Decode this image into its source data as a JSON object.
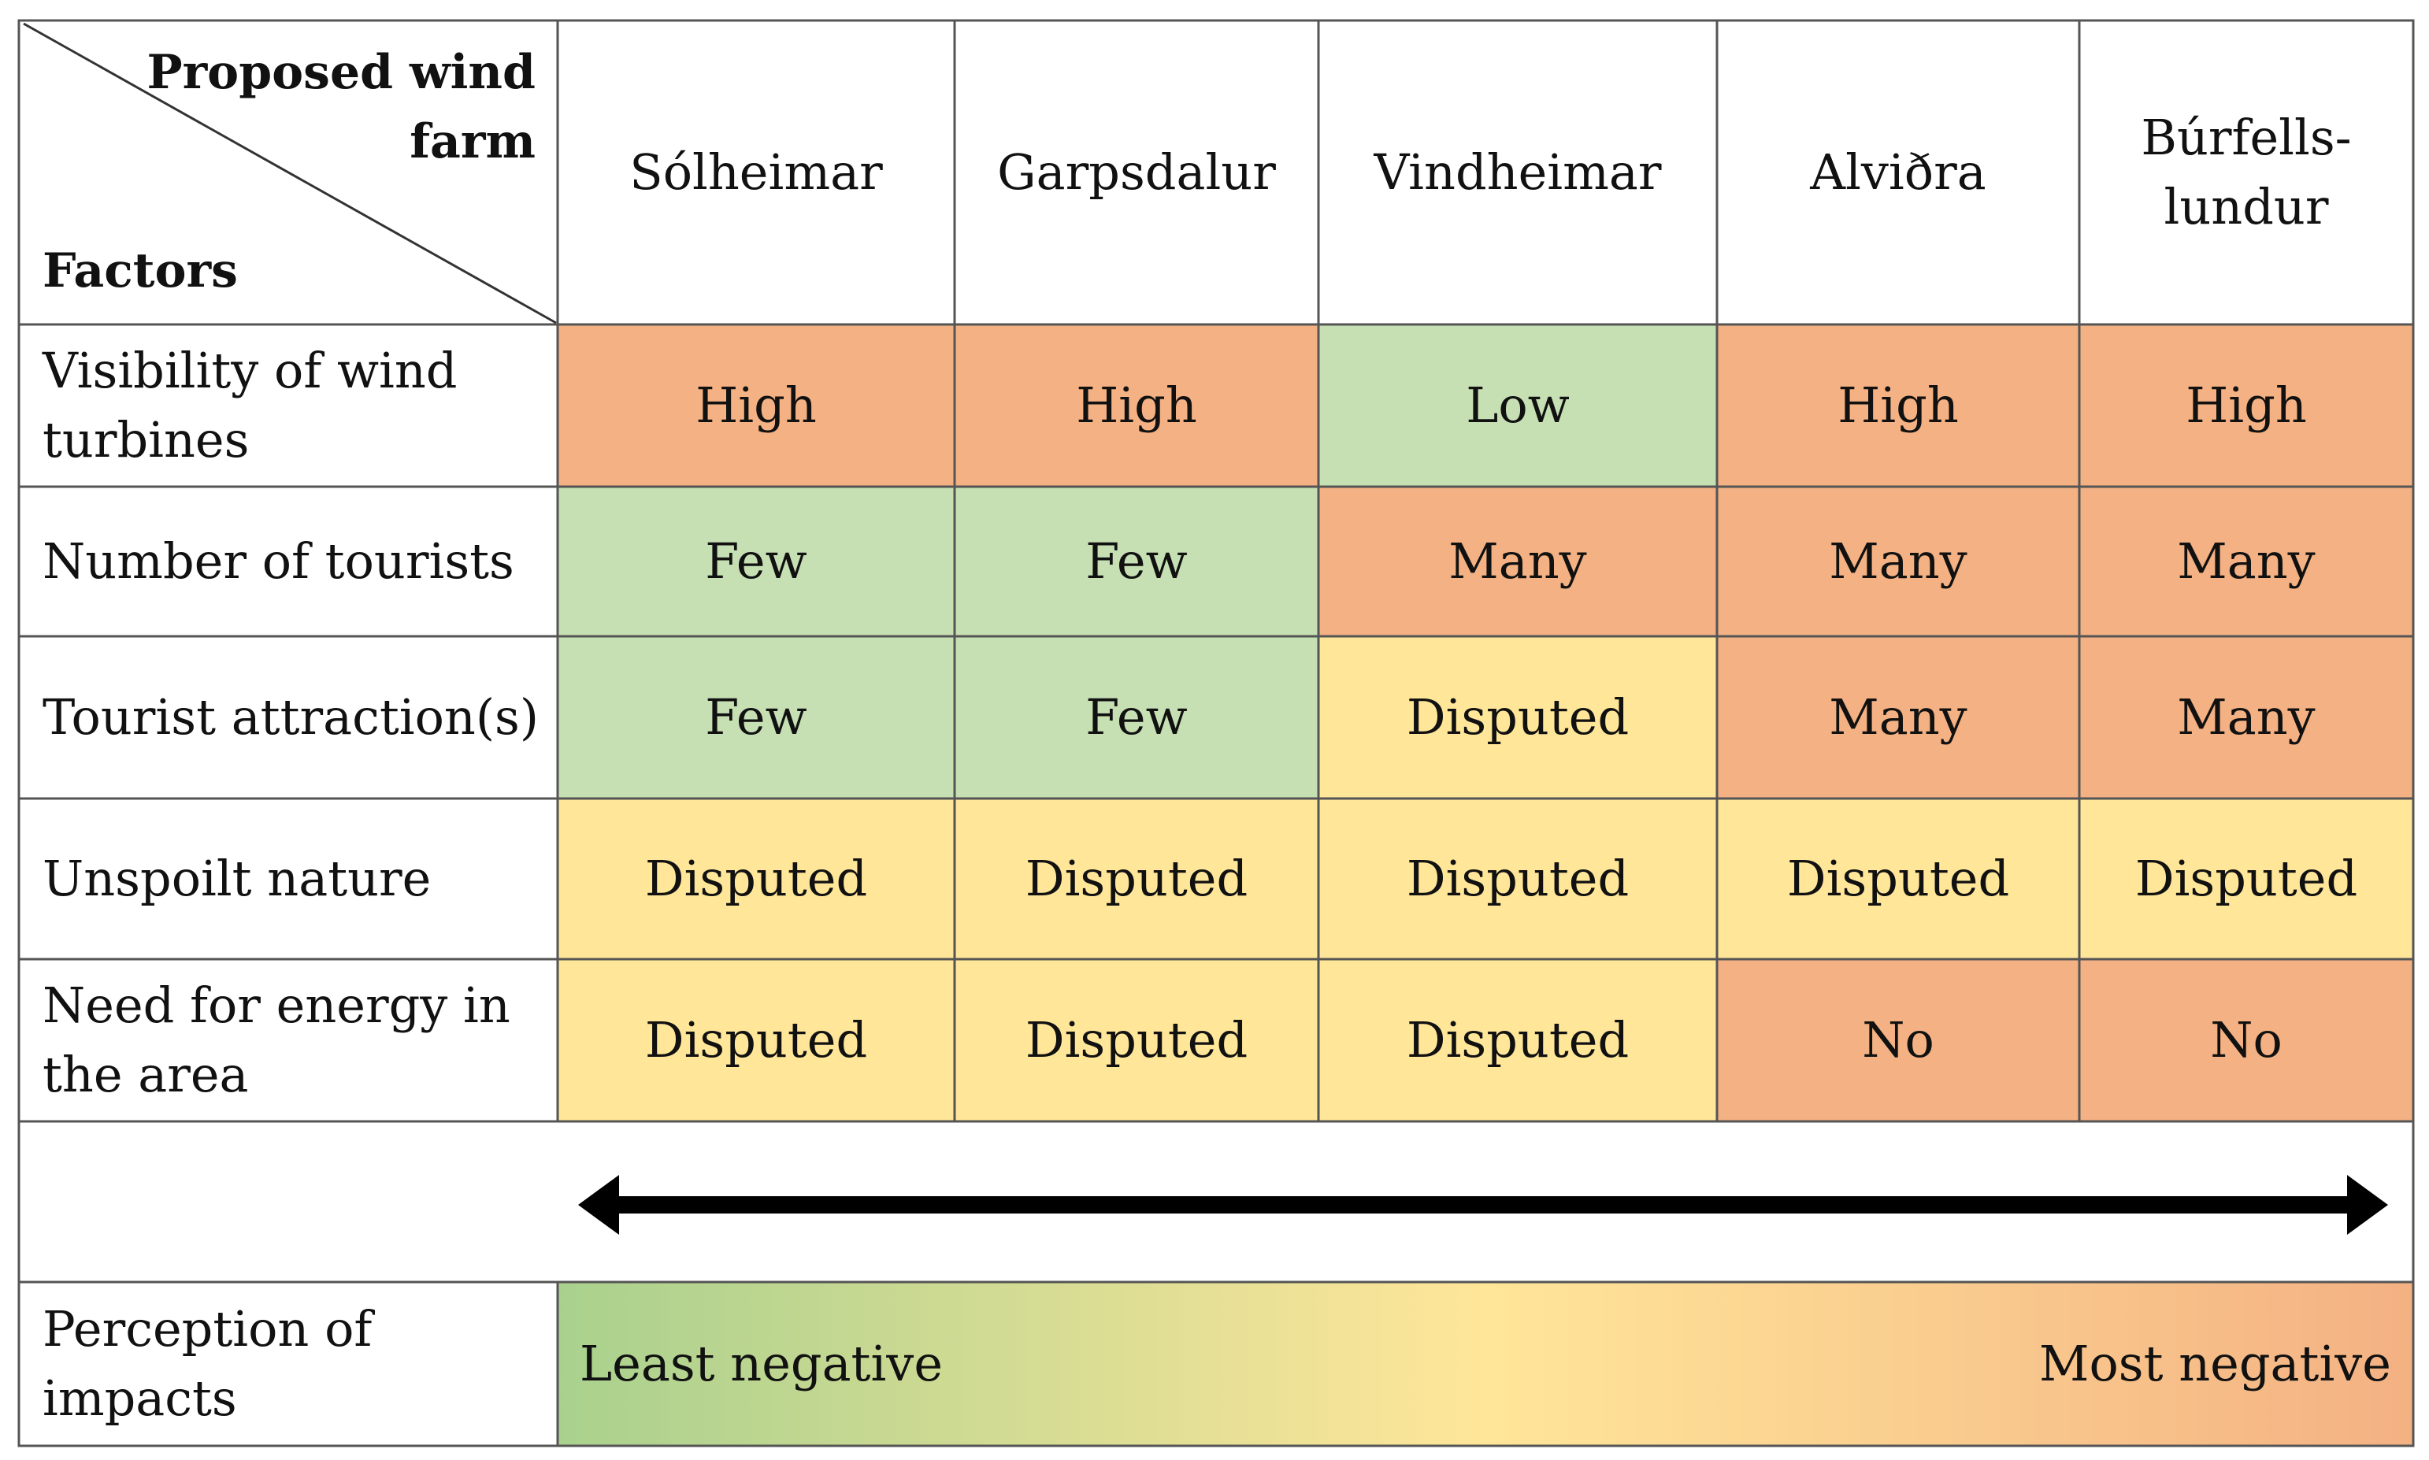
{
  "corner": {
    "top_label": "Proposed wind farm",
    "bottom_label": "Factors"
  },
  "wind_farms": [
    "Sólheimar",
    "Garpsdalur",
    "Vindheimar",
    "Alviðra",
    "Búrfells-\nlundur"
  ],
  "rows": [
    {
      "factor": "Visibility of  wind turbines",
      "values": [
        "High",
        "High",
        "Low",
        "High",
        "High"
      ]
    },
    {
      "factor": "Number of  tourists",
      "values": [
        "Few",
        "Few",
        "Many",
        "Many",
        "Many"
      ]
    },
    {
      "factor": "Tourist attraction(s)",
      "values": [
        "Few",
        "Few",
        "Disputed",
        "Many",
        "Many"
      ]
    },
    {
      "factor": "Unspoilt nature",
      "values": [
        "Disputed",
        "Disputed",
        "Disputed",
        "Disputed",
        "Disputed"
      ]
    },
    {
      "factor": "Need for energy in the area",
      "values": [
        "Disputed",
        "Disputed",
        "Disputed",
        "No",
        "No"
      ]
    }
  ],
  "category_colors": {
    "favourable": "#c6e0b4",
    "unfavourable": "#f4b183",
    "disputed": "#ffe699"
  },
  "cell_category": [
    [
      "unfavourable",
      "unfavourable",
      "favourable",
      "unfavourable",
      "unfavourable"
    ],
    [
      "favourable",
      "favourable",
      "unfavourable",
      "unfavourable",
      "unfavourable"
    ],
    [
      "favourable",
      "favourable",
      "disputed",
      "unfavourable",
      "unfavourable"
    ],
    [
      "disputed",
      "disputed",
      "disputed",
      "disputed",
      "disputed"
    ],
    [
      "disputed",
      "disputed",
      "disputed",
      "unfavourable",
      "unfavourable"
    ]
  ],
  "perception": {
    "label": "Perception of impacts",
    "left": "Least negative",
    "right": "Most negative"
  },
  "gradient_colors": [
    "#a9d18e",
    "#ffe699",
    "#f4b183"
  ]
}
